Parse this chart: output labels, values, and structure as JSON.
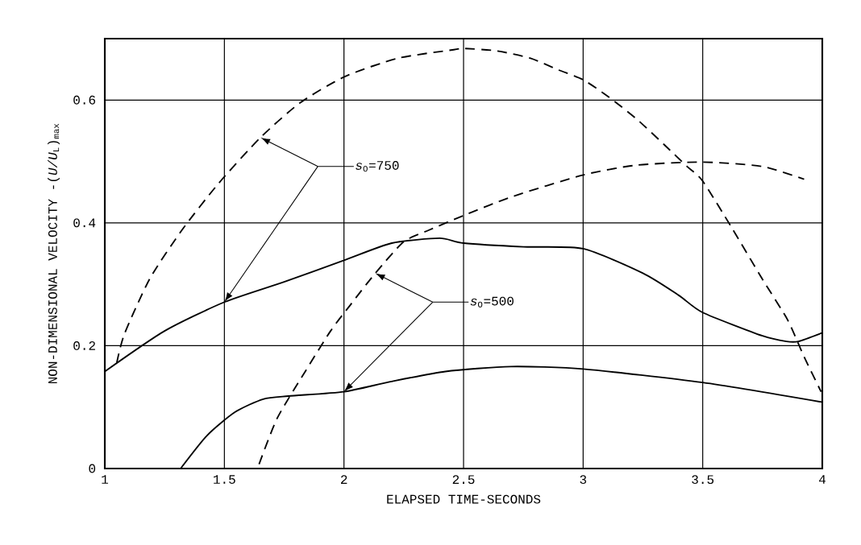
{
  "chart_data": {
    "type": "line",
    "xlabel": "ELAPSED TIME-SECONDS",
    "ylabel": "NON-DIMENSIONAL VELOCITY -(*U/U*$_{L}$)$_{max}$",
    "xlim": [
      1,
      4
    ],
    "ylim": [
      0,
      0.7
    ],
    "xticks": [
      1,
      1.5,
      2,
      2.5,
      3,
      3.5,
      4
    ],
    "yticks": [
      0,
      0.2,
      0.4,
      0.6
    ],
    "grid": true,
    "legend": false,
    "marker": "none",
    "series": [
      {
        "color": "#000000",
        "line_style": "dashed",
        "x": [
          1.05,
          1.082,
          1.188,
          1.322,
          1.475,
          1.651,
          1.815,
          2.002,
          2.225,
          2.459,
          2.5,
          2.64,
          2.78,
          2.897,
          3.0,
          3.107,
          3.224,
          3.34,
          3.434,
          3.5,
          3.62,
          3.75,
          3.855,
          3.925,
          3.995
        ],
        "values": [
          0.172,
          0.219,
          0.309,
          0.388,
          0.464,
          0.539,
          0.595,
          0.638,
          0.668,
          0.682,
          0.684,
          0.68,
          0.668,
          0.649,
          0.633,
          0.605,
          0.569,
          0.527,
          0.492,
          0.468,
          0.393,
          0.308,
          0.242,
          0.181,
          0.125
        ]
      },
      {
        "color": "#000000",
        "line_style": "solid",
        "x": [
          1.0,
          1.25,
          1.5,
          1.75,
          2.0,
          2.2,
          2.4,
          2.5,
          2.75,
          3.0,
          3.25,
          3.4,
          3.5,
          3.75,
          3.85,
          3.9,
          4.0
        ],
        "values": [
          0.158,
          0.224,
          0.271,
          0.304,
          0.339,
          0.367,
          0.375,
          0.367,
          0.361,
          0.358,
          0.318,
          0.282,
          0.254,
          0.216,
          0.207,
          0.207,
          0.221
        ]
      },
      {
        "color": "#000000",
        "line_style": "dashed",
        "x": [
          1.645,
          1.721,
          1.838,
          1.944,
          2.026,
          2.131,
          2.249,
          2.354,
          2.5,
          2.698,
          3.0,
          3.224,
          3.5,
          3.747,
          3.924
        ],
        "values": [
          0.007,
          0.082,
          0.158,
          0.224,
          0.266,
          0.318,
          0.369,
          0.388,
          0.412,
          0.442,
          0.478,
          0.494,
          0.499,
          0.492,
          0.471
        ]
      },
      {
        "color": "#000000",
        "line_style": "solid",
        "x": [
          1.317,
          1.428,
          1.545,
          1.662,
          1.768,
          2.0,
          2.19,
          2.424,
          2.698,
          3.0,
          3.5,
          4.0
        ],
        "values": [
          0,
          0.054,
          0.092,
          0.113,
          0.118,
          0.125,
          0.141,
          0.158,
          0.166,
          0.162,
          0.14,
          0.108
        ]
      }
    ],
    "annotations": [
      "*s*$_{O}$=750",
      "*s*$_{O}$=500"
    ]
  }
}
